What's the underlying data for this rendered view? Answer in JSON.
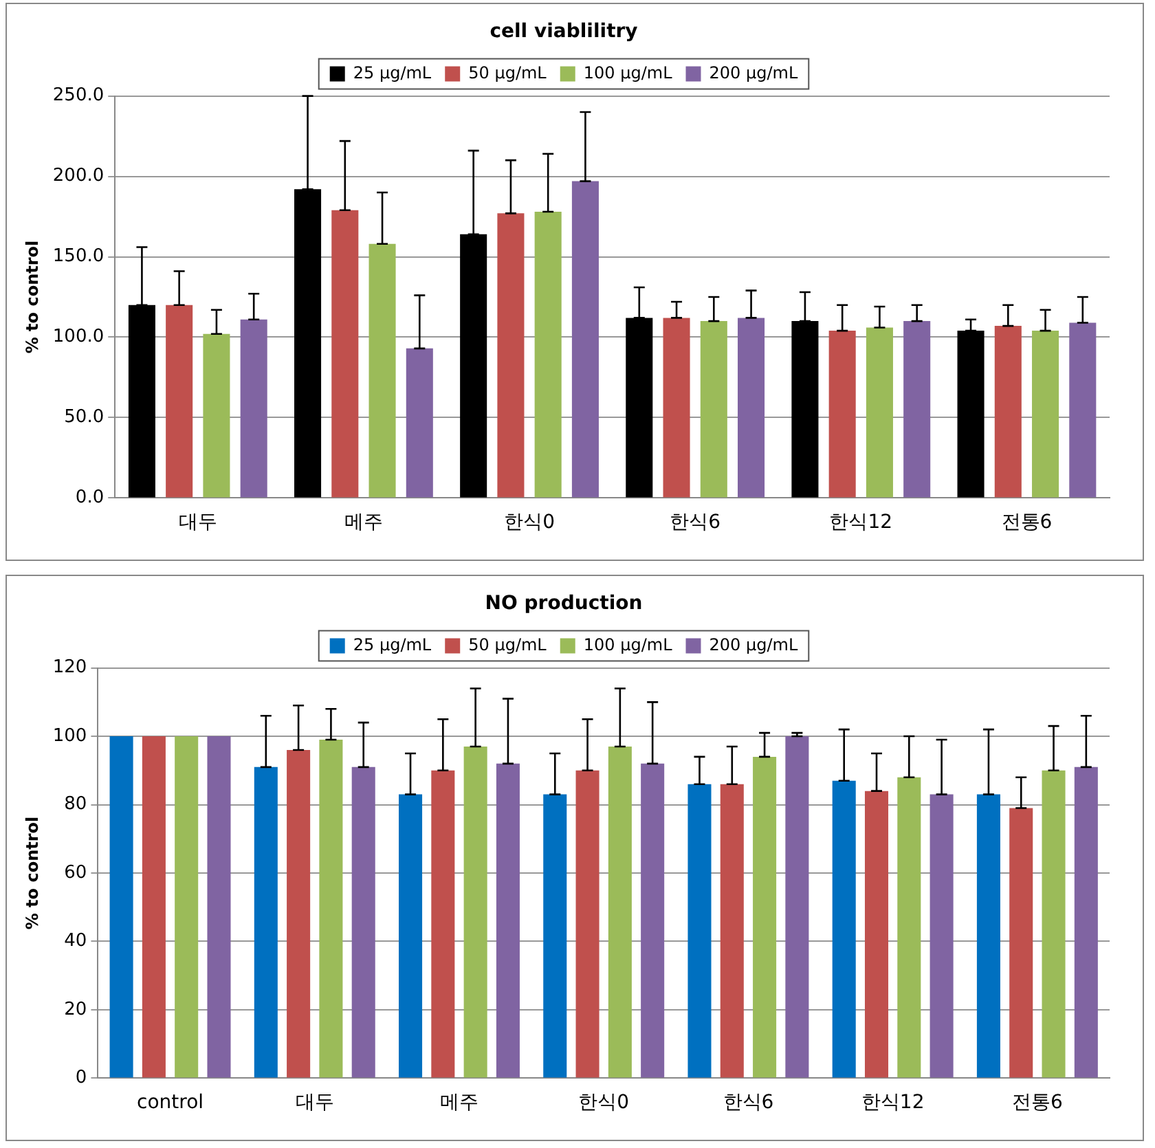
{
  "chart_data": [
    {
      "type": "bar",
      "title": "cell viablilitry",
      "ylabel": "% to control",
      "categories": [
        "대두",
        "메주",
        "한식0",
        "한식6",
        "한식12",
        "전통6"
      ],
      "series": [
        {
          "name": "25 μg/mL",
          "color": "#000000",
          "values": [
            120,
            192,
            164,
            112,
            110,
            104
          ],
          "errors": [
            [
              120,
              156
            ],
            [
              192,
              250
            ],
            [
              164,
              216
            ],
            [
              112,
              131
            ],
            [
              110,
              128
            ],
            [
              104,
              111
            ]
          ]
        },
        {
          "name": "50 μg/mL",
          "color": "#c0504d",
          "values": [
            120,
            179,
            177,
            112,
            104,
            107
          ],
          "errors": [
            [
              120,
              141
            ],
            [
              179,
              222
            ],
            [
              177,
              210
            ],
            [
              112,
              122
            ],
            [
              104,
              120
            ],
            [
              107,
              120
            ]
          ]
        },
        {
          "name": "100 μg/mL",
          "color": "#9bbb59",
          "values": [
            102,
            158,
            178,
            110,
            106,
            104
          ],
          "errors": [
            [
              102,
              117
            ],
            [
              158,
              190
            ],
            [
              178,
              214
            ],
            [
              110,
              125
            ],
            [
              106,
              119
            ],
            [
              104,
              117
            ]
          ]
        },
        {
          "name": "200 μg/mL",
          "color": "#8064a2",
          "values": [
            111,
            93,
            197,
            112,
            110,
            109
          ],
          "errors": [
            [
              111,
              127
            ],
            [
              93,
              126
            ],
            [
              197,
              240
            ],
            [
              112,
              129
            ],
            [
              110,
              120
            ],
            [
              109,
              125
            ]
          ]
        }
      ],
      "ylim": [
        0,
        250
      ],
      "yticks": [
        {
          "value": 0,
          "label": "0.0"
        },
        {
          "value": 50,
          "label": "50.0"
        },
        {
          "value": 100,
          "label": "100.0"
        },
        {
          "value": 150,
          "label": "150.0"
        },
        {
          "value": 200,
          "label": "200.0"
        },
        {
          "value": 250,
          "label": "250.0"
        }
      ],
      "grid": "y",
      "legend": "top"
    },
    {
      "type": "bar",
      "title": "NO production",
      "ylabel": "% to control",
      "categories": [
        "control",
        "대두",
        "메주",
        "한식0",
        "한식6",
        "한식12",
        "전통6"
      ],
      "series": [
        {
          "name": "25 μg/mL",
          "color": "#0070c0",
          "values": [
            100,
            91,
            83,
            83,
            86,
            87,
            83
          ],
          "errors": [
            null,
            [
              91,
              106
            ],
            [
              83,
              95
            ],
            [
              83,
              95
            ],
            [
              86,
              94
            ],
            [
              87,
              102
            ],
            [
              83,
              102
            ]
          ]
        },
        {
          "name": "50 μg/mL",
          "color": "#c0504d",
          "values": [
            100,
            96,
            90,
            90,
            86,
            84,
            79
          ],
          "errors": [
            null,
            [
              96,
              109
            ],
            [
              90,
              105
            ],
            [
              90,
              105
            ],
            [
              86,
              97
            ],
            [
              84,
              95
            ],
            [
              79,
              88
            ]
          ]
        },
        {
          "name": "100 μg/mL",
          "color": "#9bbb59",
          "values": [
            100,
            99,
            97,
            97,
            94,
            88,
            90
          ],
          "errors": [
            null,
            [
              99,
              108
            ],
            [
              97,
              114
            ],
            [
              97,
              114
            ],
            [
              94,
              101
            ],
            [
              88,
              100
            ],
            [
              90,
              103
            ]
          ]
        },
        {
          "name": "200 μg/mL",
          "color": "#8064a2",
          "values": [
            100,
            91,
            92,
            92,
            100,
            83,
            91
          ],
          "errors": [
            null,
            [
              91,
              104
            ],
            [
              92,
              111
            ],
            [
              92,
              110
            ],
            [
              100,
              101
            ],
            [
              83,
              99
            ],
            [
              91,
              106
            ]
          ]
        }
      ],
      "ylim": [
        0,
        120
      ],
      "yticks": [
        0,
        20,
        40,
        60,
        80,
        100,
        120
      ],
      "grid": "y",
      "legend": "top"
    }
  ]
}
